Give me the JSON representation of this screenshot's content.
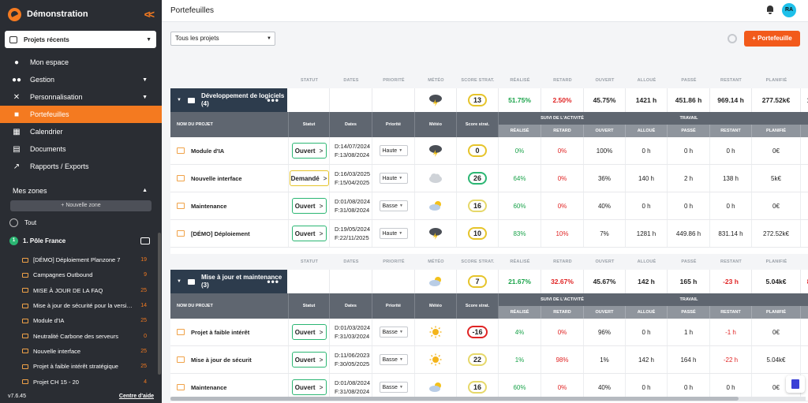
{
  "app": {
    "name": "Démonstration",
    "version": "v7.6.45",
    "help": "Centre d'aide"
  },
  "project_select": {
    "label": "Projets récents"
  },
  "nav": [
    {
      "label": "Mon espace",
      "icon": "user-icon",
      "chevron": false,
      "active": false
    },
    {
      "label": "Gestion",
      "icon": "group-icon",
      "chevron": true,
      "active": false
    },
    {
      "label": "Personnalisation",
      "icon": "tools-icon",
      "chevron": true,
      "active": false
    },
    {
      "label": "Portefeuilles",
      "icon": "briefcase-icon",
      "chevron": false,
      "active": true
    },
    {
      "label": "Calendrier",
      "icon": "calendar-icon",
      "chevron": false,
      "active": false
    },
    {
      "label": "Documents",
      "icon": "document-icon",
      "chevron": false,
      "active": false
    },
    {
      "label": "Rapports / Exports",
      "icon": "export-icon",
      "chevron": false,
      "active": false
    }
  ],
  "zones": {
    "title": "Mes zones",
    "new_zone": "+ Nouvelle zone",
    "all": "Tout",
    "pole": {
      "num": "1",
      "label": "1. Pôle France"
    },
    "items": [
      {
        "label": "[DÉMO] Déploiement Planzone 7",
        "count": "19"
      },
      {
        "label": "Campagnes Outbound",
        "count": "9"
      },
      {
        "label": "MISE À JOUR DE LA FAQ",
        "count": "25"
      },
      {
        "label": "Mise à jour de sécurité pour la version 7",
        "count": "14"
      },
      {
        "label": "Module d'IA",
        "count": "25"
      },
      {
        "label": "Neutralité Carbone des serveurs",
        "count": "0"
      },
      {
        "label": "Nouvelle interface",
        "count": "25"
      },
      {
        "label": "Projet à faible intérêt stratégique",
        "count": "25"
      },
      {
        "label": "Projet CH 15 - 20",
        "count": "4"
      }
    ]
  },
  "header": {
    "title": "Portefeuilles",
    "avatar": "RA"
  },
  "filter": {
    "value": "Tous les projets"
  },
  "add_button": "+ Portefeuille",
  "labels": {
    "statut": "STATUT",
    "dates": "DATES",
    "priorite": "PRIORITÉ",
    "meteo": "MÉTÉO",
    "score": "SCORE STRAT.",
    "realise": "RÉALISÉ",
    "retard": "RETARD",
    "ouvert": "OUVERT",
    "alloue": "ALLOUÉ",
    "passe": "PASSÉ",
    "restant": "RESTANT",
    "planifie": "PLANIFIÉ",
    "nom": "NOM DU PROJET",
    "suivi": "SUIVI DE L'ACTIVITÉ",
    "travail": "TRAVAIL",
    "statut2": "Statut",
    "dates2": "Dates",
    "priorite2": "Priorité",
    "meteo2": "Météo",
    "score2": "Score strat."
  },
  "groups": [
    {
      "name": "Développement de logiciels (4)",
      "summary": {
        "weather": "storm-icon",
        "score": "13",
        "score_color": "#e6c42a",
        "realise": "51.75%",
        "retard": "2.50%",
        "ouvert": "45.75%",
        "alloue": "1421 h",
        "passe": "451.86 h",
        "restant": "969.14 h",
        "planifie": "277.52k€",
        "extra": "1"
      },
      "projects": [
        {
          "name": "Module d'IA",
          "status": "Ouvert",
          "status_kind": "open",
          "d1": "D:14/07/2024",
          "d2": "F:13/08/2024",
          "prio": "Haute",
          "weather": "storm-icon",
          "score": "0",
          "score_color": "#e6c42a",
          "realise": "0%",
          "retard": "0%",
          "ouvert": "100%",
          "alloue": "0 h",
          "passe": "0 h",
          "restant": "0 h",
          "restant_red": false,
          "planifie": "0€"
        },
        {
          "name": "Nouvelle interface",
          "status": "Demandé",
          "status_kind": "requested",
          "d1": "D:16/03/2025",
          "d2": "F:15/04/2025",
          "prio": "Haute",
          "weather": "cloud-icon",
          "score": "26",
          "score_color": "#2bb673",
          "realise": "64%",
          "retard": "0%",
          "ouvert": "36%",
          "alloue": "140 h",
          "passe": "2 h",
          "restant": "138 h",
          "restant_red": false,
          "planifie": "5k€"
        },
        {
          "name": "Maintenance",
          "status": "Ouvert",
          "status_kind": "open",
          "d1": "D:01/08/2024",
          "d2": "F:31/08/2024",
          "prio": "Basse",
          "weather": "partly-cloudy-icon",
          "score": "16",
          "score_color": "#e6d86a",
          "realise": "60%",
          "retard": "0%",
          "ouvert": "40%",
          "alloue": "0 h",
          "passe": "0 h",
          "restant": "0 h",
          "restant_red": false,
          "planifie": "0€"
        },
        {
          "name": "[DÉMO] Déploiement",
          "status": "Ouvert",
          "status_kind": "open",
          "d1": "D:19/05/2024",
          "d2": "F:22/11/2025",
          "prio": "Haute",
          "weather": "storm-icon",
          "score": "10",
          "score_color": "#e6c42a",
          "realise": "83%",
          "retard": "10%",
          "ouvert": "7%",
          "alloue": "1281 h",
          "passe": "449.86 h",
          "restant": "831.14 h",
          "restant_red": false,
          "planifie": "272.52k€"
        }
      ]
    },
    {
      "name": "Mise à jour et maintenance (3)",
      "summary": {
        "weather": "partly-cloudy-icon",
        "score": "7",
        "score_color": "#e6c42a",
        "realise": "21.67%",
        "retard": "32.67%",
        "ouvert": "45.67%",
        "alloue": "142 h",
        "passe": "165 h",
        "restant": "-23 h",
        "planifie": "5.04k€",
        "extra": "8"
      },
      "projects": [
        {
          "name": "Projet à faible intérêt",
          "status": "Ouvert",
          "status_kind": "open",
          "d1": "D:01/03/2024",
          "d2": "F:31/03/2024",
          "prio": "Basse",
          "weather": "sun-icon",
          "score": "-16",
          "score_color": "#e02424",
          "realise": "4%",
          "retard": "0%",
          "ouvert": "96%",
          "alloue": "0 h",
          "passe": "1 h",
          "restant": "-1 h",
          "restant_red": true,
          "planifie": "0€"
        },
        {
          "name": "Mise à jour de sécurit",
          "status": "Ouvert",
          "status_kind": "open",
          "d1": "D:11/06/2023",
          "d2": "F:30/05/2025",
          "prio": "Basse",
          "weather": "sun-icon",
          "score": "22",
          "score_color": "#e6d86a",
          "realise": "1%",
          "retard": "98%",
          "ouvert": "1%",
          "alloue": "142 h",
          "passe": "164 h",
          "restant": "-22 h",
          "restant_red": true,
          "planifie": "5.04k€"
        },
        {
          "name": "Maintenance",
          "status": "Ouvert",
          "status_kind": "open",
          "d1": "D:01/08/2024",
          "d2": "F:31/08/2024",
          "prio": "Basse",
          "weather": "partly-cloudy-icon",
          "score": "16",
          "score_color": "#e6d86a",
          "realise": "60%",
          "retard": "0%",
          "ouvert": "40%",
          "alloue": "0 h",
          "passe": "0 h",
          "restant": "0 h",
          "restant_red": false,
          "planifie": "0€"
        }
      ]
    }
  ]
}
